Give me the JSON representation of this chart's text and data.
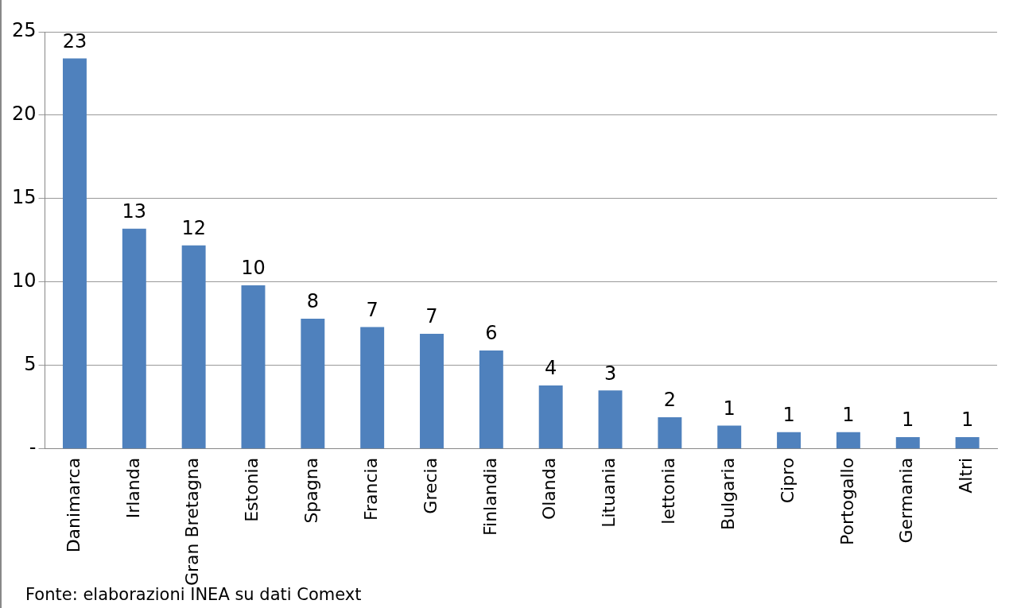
{
  "chart_data": {
    "type": "bar",
    "categories": [
      "Danimarca",
      "Irlanda",
      "Gran Bretagna",
      "Estonia",
      "Spagna",
      "Francia",
      "Grecia",
      "Finlandia",
      "Olanda",
      "Lituania",
      "lettonia",
      "Bulgaria",
      "Cipro",
      "Portogallo",
      "Germania",
      "Altri"
    ],
    "values": [
      23.4,
      13.2,
      12.2,
      9.8,
      7.8,
      7.3,
      6.9,
      5.9,
      3.8,
      3.5,
      1.9,
      1.4,
      1.0,
      1.0,
      0.7,
      0.7
    ],
    "value_labels": [
      "23",
      "13",
      "12",
      "10",
      "8",
      "7",
      "7",
      "6",
      "4",
      "3",
      "2",
      "1",
      "1",
      "1",
      "1",
      "1"
    ],
    "color": "#4f81bd",
    "ylim": [
      0,
      25
    ],
    "yticks": [
      {
        "value": 0,
        "label": "-"
      },
      5,
      10,
      15,
      20,
      25
    ],
    "grid": "y",
    "annotations": [
      "Fonte: elaborazioni INEA su dati Comext"
    ]
  }
}
